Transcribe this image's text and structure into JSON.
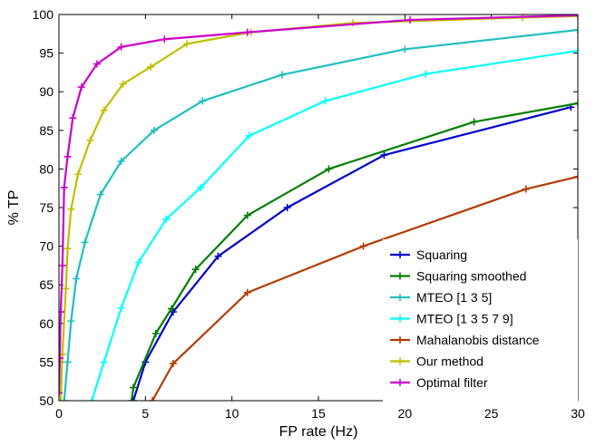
{
  "chart_data": {
    "type": "line",
    "xlabel": "FP rate (Hz)",
    "ylabel": "% TP",
    "xlim": [
      0,
      30
    ],
    "ylim": [
      50,
      100
    ],
    "xticks": [
      0,
      5,
      10,
      15,
      20,
      25,
      30
    ],
    "yticks": [
      50,
      55,
      60,
      65,
      70,
      75,
      80,
      85,
      90,
      95,
      100
    ],
    "grid": false,
    "legend_position": "bottom-right",
    "marker": "+",
    "series": [
      {
        "name": "Squaring",
        "color": "#0000cc",
        "x": [
          4.3,
          5.0,
          6.6,
          9.2,
          13.2,
          18.8,
          29.6
        ],
        "y": [
          50.0,
          55.0,
          61.5,
          68.7,
          75.0,
          81.8,
          88.0
        ]
      },
      {
        "name": "Squaring smoothed",
        "color": "#007f00",
        "x": [
          4.2,
          4.3,
          5.6,
          6.5,
          7.9,
          10.9,
          15.6,
          24.0,
          30.0
        ],
        "y": [
          50.0,
          51.7,
          58.7,
          61.9,
          67.0,
          74.0,
          80.0,
          86.1,
          88.5
        ]
      },
      {
        "name": "MTEO [1 3 5]",
        "color": "#1fbfbf",
        "x": [
          0.3,
          0.5,
          0.7,
          1.0,
          1.5,
          2.4,
          3.6,
          5.5,
          8.3,
          12.9,
          20.0,
          30.0
        ],
        "y": [
          50.0,
          55.0,
          60.3,
          65.8,
          70.5,
          76.7,
          81.0,
          85.0,
          88.8,
          92.2,
          95.5,
          98.0
        ]
      },
      {
        "name": "MTEO [1 3 5 7 9]",
        "color": "#00ffff",
        "x": [
          1.9,
          2.6,
          3.6,
          4.6,
          6.2,
          8.2,
          11.0,
          15.4,
          21.2,
          30.0
        ],
        "y": [
          50.0,
          55.0,
          62.0,
          67.9,
          73.5,
          77.6,
          84.3,
          88.8,
          92.3,
          95.3
        ]
      },
      {
        "name": "Mahalanobis distance",
        "color": "#b33c00",
        "x": [
          5.4,
          6.6,
          10.9,
          17.6,
          27.0,
          30.0
        ],
        "y": [
          50.0,
          54.8,
          64.0,
          70.0,
          77.4,
          79.0
        ]
      },
      {
        "name": "Our method",
        "color": "#bfbf00",
        "x": [
          0.1,
          0.2,
          0.4,
          0.5,
          0.7,
          1.1,
          1.8,
          2.6,
          3.7,
          5.3,
          7.4,
          11.1,
          17.0,
          26.8,
          30.0
        ],
        "y": [
          50.0,
          56.0,
          64.5,
          69.7,
          74.8,
          79.3,
          83.7,
          87.6,
          91.0,
          93.2,
          96.2,
          97.7,
          98.9,
          99.6,
          99.8
        ]
      },
      {
        "name": "Optimal filter",
        "color": "#cc00cc",
        "x": [
          0.0,
          0.05,
          0.1,
          0.2,
          0.3,
          0.5,
          0.8,
          1.3,
          2.2,
          3.6,
          6.1,
          10.9,
          20.3,
          30.0
        ],
        "y": [
          51.0,
          55.5,
          61.5,
          67.5,
          77.6,
          81.6,
          86.6,
          90.6,
          93.6,
          95.8,
          96.8,
          97.7,
          99.3,
          99.9
        ]
      }
    ]
  }
}
